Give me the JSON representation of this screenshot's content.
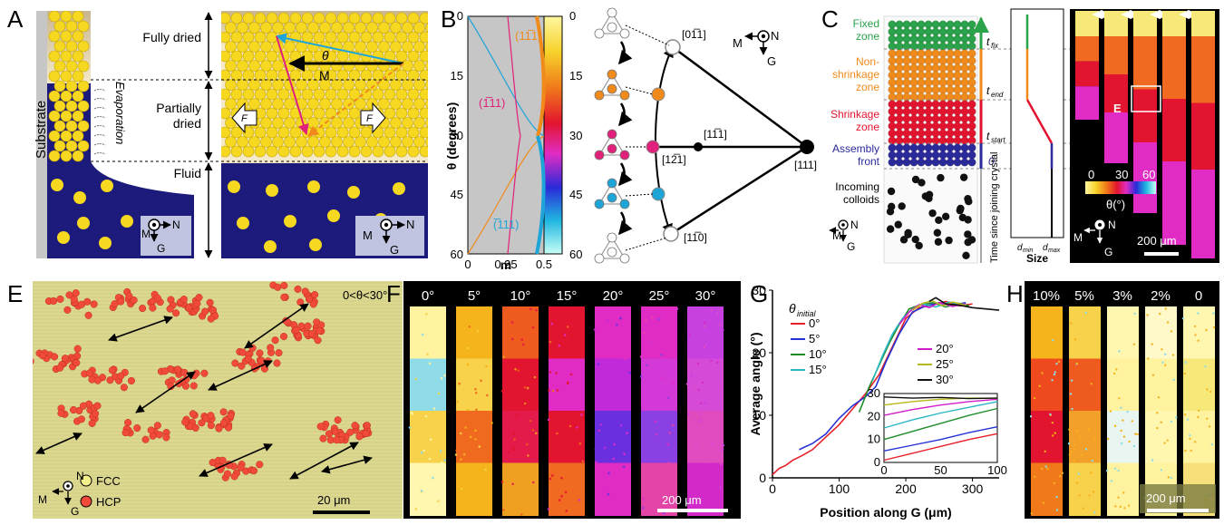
{
  "panels": {
    "A": {
      "label": "A",
      "substrate": "Substrate",
      "evaporation": "Evaporation",
      "fully_dried": "Fully dried",
      "partially_dried_1": "Partially",
      "partially_dried_2": "dried",
      "fluid": "Fluid",
      "theta": "θ",
      "M": "M",
      "F": "F",
      "axis": {
        "M": "M",
        "N": "N",
        "G": "G"
      }
    },
    "B": {
      "label": "B",
      "ylabel": "θ (degrees)",
      "xlabel": "m",
      "curve_labels": [
        "(11̅1)",
        "(1̅11)",
        "(̅111)"
      ],
      "colorbar_ticks": [
        "0",
        "15",
        "30",
        "45",
        "60"
      ],
      "directions": [
        "[01̅1]",
        "[11̅1]",
        "[12̅1]",
        "[111]",
        "[11̅0]"
      ],
      "axis": {
        "M": "M",
        "N": "N",
        "G": "G"
      }
    },
    "C": {
      "label": "C",
      "zones": [
        "Fixed",
        "zone",
        "Non-",
        "shrinkage",
        "zone",
        "Shrinkage",
        "zone",
        "Assembly",
        "front"
      ],
      "incoming": [
        "Incoming",
        "colloids"
      ],
      "times": [
        "t",
        "fix",
        "t",
        "end",
        "t",
        "start",
        "0"
      ],
      "time_axis": "Time since joining crystal",
      "size_label": "Size",
      "dmin": "d",
      "dmin_sub": "min",
      "dmax": "d",
      "dmax_sub": "max",
      "axis": {
        "M": "M",
        "N": "N",
        "G": "G"
      }
    },
    "D": {
      "label": "D",
      "inset": "E",
      "colorbar_ticks": [
        "0",
        "30",
        "60"
      ],
      "colorbar_label": "θ(°)",
      "scalebar": "200 μm",
      "axis": {
        "M": "M",
        "N": "N",
        "G": "G"
      }
    },
    "E": {
      "label": "E",
      "range_text": "0<θ<30°",
      "legend": [
        "FCC",
        "HCP"
      ],
      "scalebar": "20 μm",
      "axis": {
        "M": "M",
        "N": "N",
        "G": "G"
      }
    },
    "F": {
      "label": "F",
      "strips": [
        "0°",
        "5°",
        "10°",
        "15°",
        "20°",
        "25°",
        "30°"
      ],
      "scalebar": "200 μm"
    },
    "H": {
      "label": "H",
      "strips": [
        "10%",
        "5%",
        "3%",
        "2%",
        "0"
      ],
      "scalebar": "200 μm"
    }
  },
  "chart_data": {
    "type": "line",
    "panel": "G",
    "label": "G",
    "xlabel": "Position along G (μm)",
    "ylabel": "Average angle (°)",
    "xlim": [
      0,
      340
    ],
    "ylim": [
      0,
      30
    ],
    "xticks": [
      "0",
      "100",
      "200",
      "300"
    ],
    "yticks": [
      "0",
      "10",
      "20",
      "30"
    ],
    "legend_title": "θ",
    "legend_title_sub": "initial",
    "legend_placement": "top-left",
    "series": [
      {
        "name": "0°",
        "color": "#e8202a",
        "x": [
          0,
          10,
          20,
          30,
          45,
          60,
          80,
          100,
          120,
          140,
          160,
          180,
          200,
          220,
          240,
          260,
          280,
          300
        ],
        "y": [
          0.5,
          1.5,
          2.0,
          2.8,
          3.6,
          4.5,
          6.5,
          8.5,
          11.0,
          13.5,
          16.5,
          21.0,
          25.5,
          27.2,
          27.6,
          28.2,
          27.5,
          27.8
        ]
      },
      {
        "name": "5°",
        "color": "#2632d4",
        "x": [
          40,
          60,
          80,
          100,
          120,
          140,
          155,
          170,
          190,
          210,
          230,
          250,
          270,
          290
        ],
        "y": [
          4.5,
          5.5,
          7.0,
          9.5,
          11.5,
          13.0,
          14.6,
          18.5,
          23.0,
          26.5,
          27.5,
          28.0,
          27.6,
          28.0
        ]
      },
      {
        "name": "10°",
        "color": "#1f8c2a",
        "x": [
          130,
          145,
          160,
          175,
          190,
          205,
          220,
          240,
          260,
          280,
          295
        ],
        "y": [
          10.5,
          14.5,
          18.0,
          21.5,
          24.5,
          27.0,
          27.6,
          28.0,
          27.3,
          27.9,
          27.5
        ]
      },
      {
        "name": "15°",
        "color": "#2bb7c6",
        "x": [
          150,
          165,
          180,
          195,
          210,
          225,
          245,
          265,
          285
        ],
        "y": [
          15.5,
          19.5,
          23.0,
          25.5,
          27.0,
          27.8,
          27.3,
          28.1,
          27.6
        ]
      },
      {
        "name": "20°",
        "color": "#d01fc8",
        "x": [
          190,
          205,
          220,
          235,
          250,
          270,
          290
        ],
        "y": [
          24.5,
          26.5,
          27.7,
          27.2,
          28.0,
          27.4,
          27.8
        ]
      },
      {
        "name": "25°",
        "color": "#b9b81a",
        "x": [
          210,
          225,
          240,
          255,
          270,
          290
        ],
        "y": [
          26.8,
          27.9,
          28.3,
          27.5,
          28.1,
          27.6
        ]
      },
      {
        "name": "30°",
        "color": "#111111",
        "x": [
          235,
          245,
          260,
          280,
          300,
          320,
          340
        ],
        "y": [
          28.2,
          28.8,
          27.8,
          27.6,
          27.2,
          27.0,
          26.8
        ]
      }
    ],
    "inset": {
      "xlim": [
        0,
        100
      ],
      "ylim": [
        0,
        30
      ],
      "xticks": [
        "0",
        "50",
        "100"
      ],
      "yticks": [
        "0",
        "10",
        "20",
        "30"
      ],
      "series": [
        {
          "color": "#e8202a",
          "x": [
            0,
            25,
            50,
            75,
            100
          ],
          "y": [
            1.0,
            4.0,
            7.0,
            10.0,
            12.5
          ]
        },
        {
          "color": "#2632d4",
          "x": [
            0,
            25,
            50,
            75,
            100
          ],
          "y": [
            5.0,
            7.5,
            10.0,
            13.0,
            15.5
          ]
        },
        {
          "color": "#1f8c2a",
          "x": [
            0,
            25,
            50,
            75,
            100
          ],
          "y": [
            10.0,
            13.5,
            17.0,
            20.5,
            23.5
          ]
        },
        {
          "color": "#2bb7c6",
          "x": [
            0,
            25,
            50,
            75,
            100
          ],
          "y": [
            15.0,
            18.5,
            21.5,
            24.0,
            26.5
          ]
        },
        {
          "color": "#d01fc8",
          "x": [
            0,
            25,
            50,
            75,
            100
          ],
          "y": [
            20.5,
            23.0,
            25.0,
            26.5,
            27.5
          ]
        },
        {
          "color": "#b9b81a",
          "x": [
            0,
            25,
            50,
            75,
            100
          ],
          "y": [
            25.0,
            26.5,
            27.5,
            28.0,
            28.0
          ]
        },
        {
          "color": "#111111",
          "x": [
            0,
            25,
            50,
            75,
            100
          ],
          "y": [
            28.5,
            28.0,
            28.3,
            27.8,
            28.0
          ]
        }
      ]
    }
  }
}
